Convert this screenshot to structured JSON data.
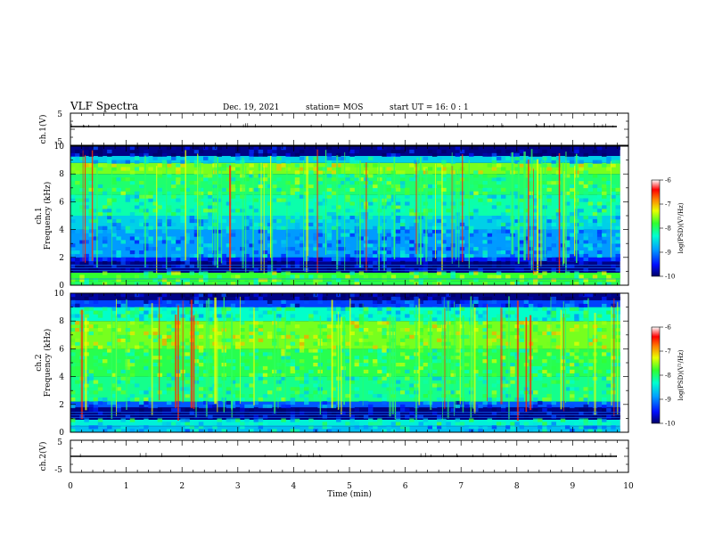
{
  "header": {
    "title": "VLF Spectra",
    "date": "Dec. 19, 2021",
    "station": "station= MOS",
    "start": "start  UT =   16: 0  : 1"
  },
  "chart_data": [
    {
      "type": "line",
      "name": "ch1-voltage",
      "ylabel": "ch.1(V)",
      "yticks": [
        "5",
        "-5"
      ],
      "ylim": [
        -5,
        5
      ],
      "xlim": [
        0,
        10
      ],
      "level": -1.5
    },
    {
      "type": "heatmap",
      "name": "ch1-spectrogram",
      "ylabel": "ch.1\nFrequency (kHz)",
      "ylabel_line1": "ch.1",
      "ylabel_line2": "Frequency (kHz)",
      "yticks": [
        "0",
        "2",
        "4",
        "6",
        "8",
        "10"
      ],
      "ylim": [
        0,
        10
      ],
      "xlim": [
        0,
        9.85
      ],
      "colorbar": {
        "label": "log(PSD)(V²/Hz)",
        "ticks": [
          "-6",
          "-7",
          "-8",
          "-9",
          "-10"
        ],
        "range": [
          -10,
          -6
        ]
      },
      "bands": [
        {
          "from": 0.0,
          "to": 0.3,
          "level": -7.9
        },
        {
          "from": 0.3,
          "to": 0.9,
          "level": -7.8
        },
        {
          "from": 0.9,
          "to": 1.7,
          "level": -9.9
        },
        {
          "from": 1.7,
          "to": 2.0,
          "level": -9.5
        },
        {
          "from": 2.0,
          "to": 4.0,
          "level": -8.9
        },
        {
          "from": 4.0,
          "to": 5.0,
          "level": -8.6
        },
        {
          "from": 5.0,
          "to": 6.5,
          "level": -8.2
        },
        {
          "from": 6.5,
          "to": 8.0,
          "level": -8.0
        },
        {
          "from": 8.0,
          "to": 8.8,
          "level": -7.6
        },
        {
          "from": 8.8,
          "to": 9.3,
          "level": -8.6
        },
        {
          "from": 9.3,
          "to": 10.0,
          "level": -9.9
        }
      ]
    },
    {
      "type": "heatmap",
      "name": "ch2-spectrogram",
      "ylabel_line1": "ch.2",
      "ylabel_line2": "Frequency (kHz)",
      "yticks": [
        "0",
        "2",
        "4",
        "6",
        "8",
        "10"
      ],
      "ylim": [
        0,
        10
      ],
      "xlim": [
        0,
        9.85
      ],
      "colorbar": {
        "label": "log(PSD)(V²/Hz)",
        "ticks": [
          "-6",
          "-7",
          "-8",
          "-9",
          "-10"
        ],
        "range": [
          -10,
          -6
        ]
      },
      "bands": [
        {
          "from": 0.0,
          "to": 0.4,
          "level": -8.7
        },
        {
          "from": 0.4,
          "to": 0.9,
          "level": -8.4
        },
        {
          "from": 0.9,
          "to": 1.8,
          "level": -9.9
        },
        {
          "from": 1.8,
          "to": 2.2,
          "level": -9.2
        },
        {
          "from": 2.2,
          "to": 4.0,
          "level": -8.1
        },
        {
          "from": 4.0,
          "to": 6.0,
          "level": -7.9
        },
        {
          "from": 6.0,
          "to": 8.0,
          "level": -7.6
        },
        {
          "from": 8.0,
          "to": 9.0,
          "level": -8.3
        },
        {
          "from": 9.0,
          "to": 9.5,
          "level": -9.3
        },
        {
          "from": 9.5,
          "to": 10.0,
          "level": -9.9
        }
      ]
    },
    {
      "type": "line",
      "name": "ch2-voltage",
      "ylabel": "ch.2(V)",
      "yticks": [
        "5",
        "-5"
      ],
      "ylim": [
        -5,
        5
      ],
      "xlim": [
        0,
        10
      ],
      "level": -1.5
    }
  ],
  "xaxis": {
    "label": "Time  (min)",
    "ticks": [
      "0",
      "1",
      "2",
      "3",
      "4",
      "5",
      "6",
      "7",
      "8",
      "9",
      "10"
    ],
    "range": [
      0,
      10
    ]
  }
}
